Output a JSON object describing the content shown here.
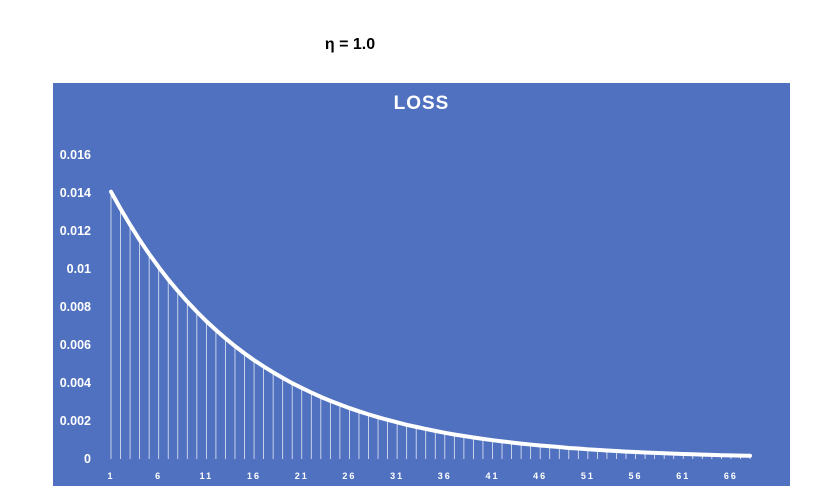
{
  "page": {
    "heading": "η = 1.0"
  },
  "colors": {
    "panel": "#4F71BF",
    "line": "#FFFFFF",
    "text": "#FFFFFF"
  },
  "chart_data": {
    "type": "line",
    "title": "LOSS",
    "xlabel": "",
    "ylabel": "",
    "grid": false,
    "legend": "none",
    "drop_lines": true,
    "x_start": 1,
    "x_end": 68,
    "x_tick_labels": [
      "1",
      "6",
      "11",
      "16",
      "21",
      "26",
      "31",
      "36",
      "41",
      "46",
      "51",
      "56",
      "61",
      "66"
    ],
    "y_tick_labels": [
      "0",
      "0.002",
      "0.004",
      "0.006",
      "0.008",
      "0.01",
      "0.012",
      "0.014",
      "0.016"
    ],
    "ylim": [
      0,
      0.016
    ],
    "series": [
      {
        "values": [
          0.01407,
          0.01317,
          0.01233,
          0.01153,
          0.01079,
          0.0101,
          0.00945,
          0.00885,
          0.00828,
          0.00775,
          0.00725,
          0.00679,
          0.00635,
          0.00594,
          0.00556,
          0.0052,
          0.00487,
          0.00456,
          0.00427,
          0.00399,
          0.00374,
          0.0035,
          0.00327,
          0.00306,
          0.00287,
          0.00268,
          0.00251,
          0.00235,
          0.0022,
          0.00206,
          0.00193,
          0.0018,
          0.00169,
          0.00158,
          0.00148,
          0.00138,
          0.00129,
          0.00121,
          0.00113,
          0.00106,
          0.00099,
          0.00093,
          0.00087,
          0.00081,
          0.00076,
          0.00071,
          0.00067,
          0.00063,
          0.00058,
          0.00055,
          0.00051,
          0.00048,
          0.00045,
          0.00042,
          0.00039,
          0.00037,
          0.00034,
          0.00032,
          0.0003,
          0.00028,
          0.00026,
          0.00025,
          0.00023,
          0.00022,
          0.0002,
          0.00019,
          0.00018,
          0.00017
        ]
      }
    ]
  }
}
